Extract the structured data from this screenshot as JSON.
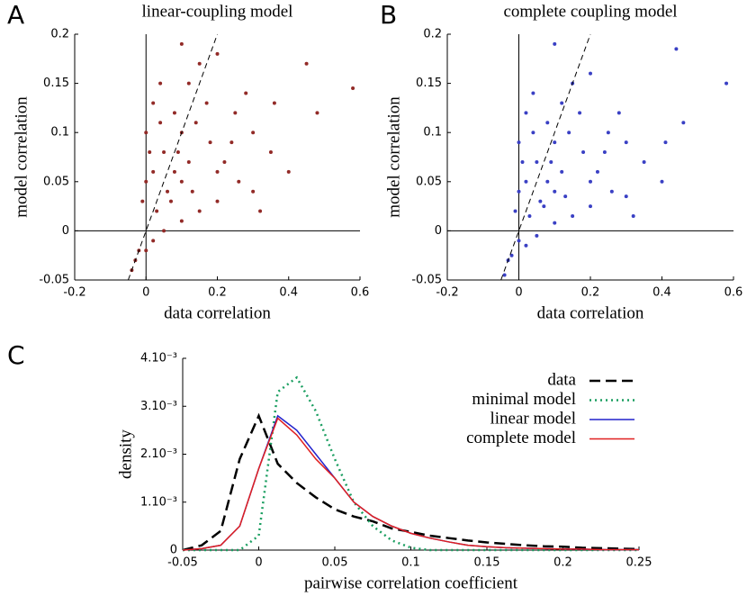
{
  "chart_data": [
    {
      "type": "scatter",
      "panel_label": "A",
      "title": "linear-coupling model",
      "xlabel": "data correlation",
      "ylabel": "model correlation",
      "color": "#922a27",
      "xlim": [
        -0.2,
        0.6
      ],
      "ylim": [
        -0.05,
        0.2
      ],
      "xticks": [
        -0.2,
        0,
        0.2,
        0.4,
        0.6
      ],
      "yticks": [
        -0.05,
        0,
        0.05,
        0.1,
        0.15,
        0.2
      ],
      "x": [
        0.0,
        0.02,
        0.05,
        0.1,
        0.08,
        0.12,
        0.15,
        0.1,
        0.2,
        0.25,
        0.3,
        0.35,
        0.45,
        0.48,
        0.58,
        0.4,
        0.3,
        0.2,
        0.15,
        0.1,
        0.05,
        0.02,
        -0.02,
        -0.03,
        -0.04,
        0.0,
        0.03,
        0.06,
        0.08,
        0.12,
        0.18,
        0.22,
        0.26,
        0.32,
        -0.01,
        0.0,
        0.02,
        0.04,
        0.07,
        0.1,
        0.14,
        0.17,
        0.24,
        0.28,
        0.36,
        0.01,
        0.04,
        0.09,
        0.13,
        0.2
      ],
      "y": [
        0.05,
        0.06,
        0.08,
        0.1,
        0.12,
        0.15,
        0.17,
        0.19,
        0.18,
        0.12,
        0.1,
        0.08,
        0.17,
        0.12,
        0.145,
        0.06,
        0.04,
        0.03,
        0.02,
        0.01,
        0.0,
        -0.01,
        -0.02,
        -0.03,
        -0.04,
        -0.02,
        0.02,
        0.04,
        0.06,
        0.07,
        0.09,
        0.07,
        0.05,
        0.02,
        0.03,
        0.1,
        0.13,
        0.15,
        0.03,
        0.05,
        0.11,
        0.13,
        0.09,
        0.14,
        0.13,
        0.08,
        0.11,
        0.08,
        0.04,
        0.06
      ]
    },
    {
      "type": "scatter",
      "panel_label": "B",
      "title": "complete coupling model",
      "xlabel": "data correlation",
      "ylabel": "model correlation",
      "color": "#3a40c4",
      "xlim": [
        -0.2,
        0.6
      ],
      "ylim": [
        -0.05,
        0.2
      ],
      "xticks": [
        -0.2,
        0,
        0.2,
        0.4,
        0.6
      ],
      "yticks": [
        -0.05,
        0,
        0.05,
        0.1,
        0.15,
        0.2
      ],
      "x": [
        0.0,
        0.02,
        0.05,
        0.1,
        0.08,
        0.12,
        0.15,
        0.1,
        0.2,
        0.25,
        0.3,
        0.35,
        0.44,
        0.46,
        0.58,
        0.4,
        0.3,
        0.2,
        0.15,
        0.1,
        0.05,
        0.02,
        -0.02,
        -0.03,
        -0.04,
        0.0,
        0.03,
        0.06,
        0.08,
        0.12,
        0.18,
        0.22,
        0.26,
        0.32,
        -0.01,
        0.0,
        0.02,
        0.04,
        0.07,
        0.1,
        0.14,
        0.17,
        0.24,
        0.28,
        0.41,
        0.01,
        0.04,
        0.09,
        0.13,
        0.2
      ],
      "y": [
        0.04,
        0.05,
        0.07,
        0.09,
        0.11,
        0.13,
        0.15,
        0.19,
        0.16,
        0.1,
        0.09,
        0.07,
        0.185,
        0.11,
        0.15,
        0.05,
        0.035,
        0.025,
        0.015,
        0.008,
        -0.005,
        -0.015,
        -0.025,
        -0.03,
        -0.045,
        -0.01,
        0.015,
        0.03,
        0.05,
        0.06,
        0.08,
        0.06,
        0.04,
        0.015,
        0.02,
        0.09,
        0.12,
        0.14,
        0.025,
        0.04,
        0.1,
        0.12,
        0.08,
        0.12,
        0.09,
        0.07,
        0.1,
        0.07,
        0.035,
        0.05
      ]
    },
    {
      "type": "line",
      "panel_label": "C",
      "xlabel": "pairwise correlation coefficient",
      "ylabel": "density",
      "xlim": [
        -0.05,
        0.25
      ],
      "ylim": [
        0,
        0.004
      ],
      "xticks": [
        -0.05,
        0,
        0.05,
        0.1,
        0.15,
        0.2,
        0.25
      ],
      "yticks": [
        0,
        {
          "value": 0.001,
          "label": "1.10⁻³"
        },
        {
          "value": 0.002,
          "label": "2.10⁻³"
        },
        {
          "value": 0.003,
          "label": "3.10⁻³"
        },
        {
          "value": 0.004,
          "label": "4.10⁻³"
        }
      ],
      "legend": "upper right",
      "x": [
        -0.05,
        -0.0375,
        -0.025,
        -0.0125,
        0,
        0.0125,
        0.025,
        0.0375,
        0.05,
        0.0625,
        0.075,
        0.0875,
        0.1,
        0.1125,
        0.125,
        0.1375,
        0.15,
        0.1625,
        0.175,
        0.1875,
        0.2,
        0.2125,
        0.225,
        0.2375,
        0.25
      ],
      "series": [
        {
          "name": "data",
          "color": "#000000",
          "style": "dashed",
          "values": [
            0,
            0.0001,
            0.0004,
            0.0019,
            0.0028,
            0.0018,
            0.0014,
            0.0011,
            0.00085,
            0.0007,
            0.0006,
            0.00045,
            0.00038,
            0.0003,
            0.00025,
            0.0002,
            0.00016,
            0.00013,
            0.0001,
            8e-05,
            7e-05,
            5e-05,
            4e-05,
            3e-05,
            2e-05
          ]
        },
        {
          "name": "minimal model",
          "color": "#1a9e60",
          "style": "dotted",
          "values": [
            0,
            0,
            0,
            0,
            0.0003,
            0.0033,
            0.0036,
            0.0029,
            0.0019,
            0.001,
            0.0005,
            0.0002,
            5e-05,
            0,
            0,
            0,
            0,
            0,
            0,
            0,
            0,
            0,
            0,
            0,
            0
          ]
        },
        {
          "name": "linear model",
          "color": "#2222cc",
          "style": "solid",
          "values": [
            0,
            3e-05,
            0.0001,
            0.0005,
            0.0017,
            0.0028,
            0.0025,
            0.002,
            0.0015,
            0.001,
            0.0007,
            0.0005,
            0.00035,
            0.00025,
            0.00017,
            0.0001,
            7e-05,
            5e-05,
            4e-05,
            3e-05,
            2e-05,
            2e-05,
            1e-05,
            1e-05,
            1e-05
          ]
        },
        {
          "name": "complete model",
          "color": "#e02020",
          "style": "solid",
          "values": [
            0,
            3e-05,
            0.0001,
            0.0005,
            0.0017,
            0.00275,
            0.0024,
            0.0019,
            0.0015,
            0.001,
            0.0007,
            0.0005,
            0.00035,
            0.00025,
            0.00017,
            0.0001,
            7e-05,
            5e-05,
            4e-05,
            3e-05,
            2e-05,
            2e-05,
            1e-05,
            1e-05,
            1e-05
          ]
        }
      ]
    }
  ]
}
